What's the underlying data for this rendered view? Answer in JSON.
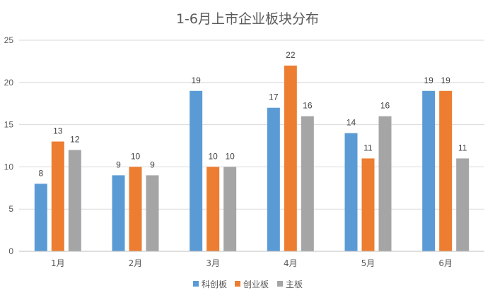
{
  "chart_data": {
    "type": "bar",
    "title": "1-6月上市企业板块分布",
    "xlabel": "",
    "ylabel": "",
    "ylim": [
      0,
      25
    ],
    "yticks": [
      0,
      5,
      10,
      15,
      20,
      25
    ],
    "grid": true,
    "legend_position": "bottom",
    "categories": [
      "1月",
      "2月",
      "3月",
      "4月",
      "5月",
      "6月"
    ],
    "series": [
      {
        "name": "科创板",
        "color": "#5b9bd5",
        "values": [
          8,
          9,
          19,
          17,
          14,
          19
        ]
      },
      {
        "name": "创业板",
        "color": "#ed7d31",
        "values": [
          13,
          10,
          10,
          22,
          11,
          19
        ]
      },
      {
        "name": "主板",
        "color": "#a5a5a5",
        "values": [
          12,
          9,
          10,
          16,
          16,
          11
        ]
      }
    ]
  }
}
